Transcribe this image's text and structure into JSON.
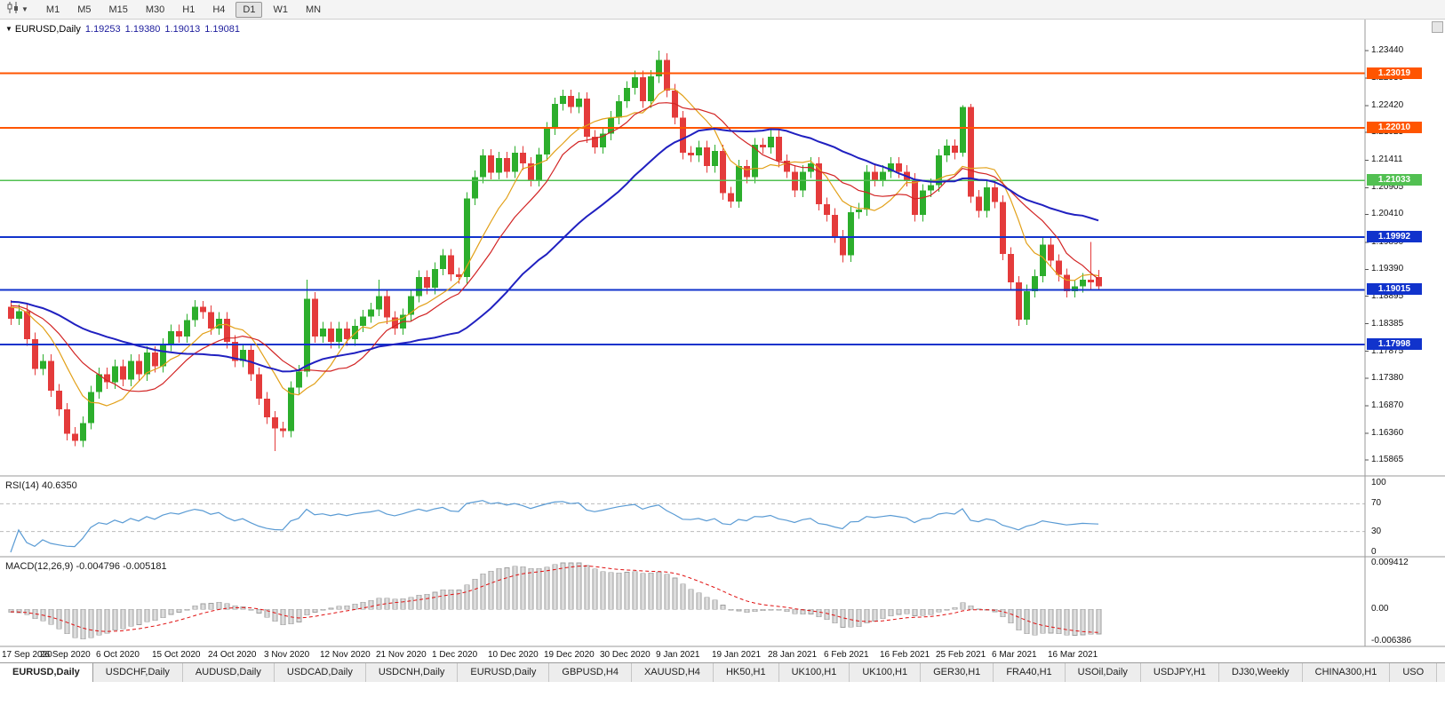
{
  "toolbar": {
    "timeframes": [
      "M1",
      "M5",
      "M15",
      "M30",
      "H1",
      "H4",
      "D1",
      "W1",
      "MN"
    ],
    "active_timeframe": "D1"
  },
  "chart": {
    "title": {
      "symbol": "EURUSD,Daily",
      "open": "1.19253",
      "high": "1.19380",
      "low": "1.19013",
      "close": "1.19081"
    },
    "price_axis": {
      "ticks": [
        "1.23440",
        "1.22930",
        "1.22420",
        "1.21925",
        "1.21411",
        "1.20905",
        "1.20410",
        "1.19890",
        "1.19390",
        "1.18895",
        "1.18385",
        "1.17875",
        "1.17380",
        "1.16870",
        "1.16360",
        "1.15865"
      ]
    },
    "hlines": [
      {
        "price": 1.23019,
        "label": "1.23019",
        "color": "#FF5500",
        "width": 2
      },
      {
        "price": 1.2201,
        "label": "1.22010",
        "color": "#FF5500",
        "width": 2
      },
      {
        "price": 1.21033,
        "label": "1.21033",
        "color": "#52C052",
        "width": 1.5
      },
      {
        "price": 1.19992,
        "label": "1.19992",
        "color": "#1133CC",
        "width": 2
      },
      {
        "price": 1.19015,
        "label": "1.19015",
        "color": "#1133CC",
        "width": 2
      },
      {
        "price": 1.17998,
        "label": "1.17998",
        "color": "#1133CC",
        "width": 2
      }
    ],
    "date_axis": [
      "17 Sep 2020",
      "26 Sep 2020",
      "6 Oct 2020",
      "15 Oct 2020",
      "24 Oct 2020",
      "3 Nov 2020",
      "12 Nov 2020",
      "21 Nov 2020",
      "1 Dec 2020",
      "10 Dec 2020",
      "19 Dec 2020",
      "30 Dec 2020",
      "9 Jan 2021",
      "19 Jan 2021",
      "28 Jan 2021",
      "6 Feb 2021",
      "16 Feb 2021",
      "25 Feb 2021",
      "6 Mar 2021",
      "16 Mar 2021"
    ]
  },
  "rsi": {
    "label": "RSI(14) 40.6350",
    "axis": [
      "100",
      "70",
      "30",
      "0"
    ],
    "levels": [
      70,
      30
    ]
  },
  "macd": {
    "label": "MACD(12,26,9) -0.004796 -0.005181",
    "axis": [
      "0.009412",
      "0.00",
      "-0.006386"
    ],
    "range": [
      -0.006386,
      0.009412
    ]
  },
  "colors": {
    "bull": "#2CAE2C",
    "bear": "#E43B3B",
    "rsi_line": "#5A9BD4",
    "macd_bar": "#dcdcdc",
    "macd_bar_edge": "#9e9e9e",
    "macd_signal": "#E01010"
  },
  "chart_data": {
    "type": "candlestick",
    "symbol": "EURUSD",
    "timeframe": "Daily",
    "ohlc_current": [
      1.19253,
      1.1938,
      1.19013,
      1.19081
    ],
    "price_range": [
      1.15865,
      1.2344
    ],
    "bars_per_label": 7,
    "x_labels": [
      "17 Sep 2020",
      "26 Sep 2020",
      "6 Oct 2020",
      "15 Oct 2020",
      "24 Oct 2020",
      "3 Nov 2020",
      "12 Nov 2020",
      "21 Nov 2020",
      "1 Dec 2020",
      "10 Dec 2020",
      "19 Dec 2020",
      "30 Dec 2020",
      "9 Jan 2021",
      "19 Jan 2021",
      "28 Jan 2021",
      "6 Feb 2021",
      "16 Feb 2021",
      "25 Feb 2021",
      "6 Mar 2021",
      "16 Mar 2021"
    ],
    "horizontal_lines": [
      1.23019,
      1.2201,
      1.21033,
      1.19992,
      1.19015,
      1.17998
    ],
    "moving_averages": [
      {
        "name": "ma-fast",
        "period": 8,
        "color": "#E2A018",
        "width": 1.2
      },
      {
        "name": "ma-mid",
        "period": 13,
        "color": "#D22424",
        "width": 1.2
      },
      {
        "name": "ma-slow",
        "period": 30,
        "color": "#2020C0",
        "width": 2
      }
    ],
    "indicators": [
      {
        "name": "RSI",
        "params": [
          14
        ],
        "current": 40.635
      },
      {
        "name": "MACD",
        "params": [
          12,
          26,
          9
        ],
        "current": [
          -0.004796,
          -0.005181
        ]
      }
    ],
    "candles": [
      [
        1.187,
        1.1882,
        1.1836,
        1.1848
      ],
      [
        1.1848,
        1.1874,
        1.1836,
        1.1862
      ],
      [
        1.1862,
        1.1874,
        1.1798,
        1.181
      ],
      [
        1.181,
        1.1822,
        1.1743,
        1.1755
      ],
      [
        1.1755,
        1.1782,
        1.1743,
        1.177
      ],
      [
        1.177,
        1.1782,
        1.1703,
        1.1715
      ],
      [
        1.1715,
        1.1727,
        1.1668,
        1.168
      ],
      [
        1.168,
        1.1692,
        1.1623,
        1.1635
      ],
      [
        1.1635,
        1.1647,
        1.1612,
        1.1622
      ],
      [
        1.1622,
        1.1667,
        1.161,
        1.1655
      ],
      [
        1.1655,
        1.1724,
        1.1643,
        1.1712
      ],
      [
        1.1712,
        1.1757,
        1.17,
        1.1745
      ],
      [
        1.1745,
        1.1757,
        1.1718,
        1.173
      ],
      [
        1.173,
        1.1772,
        1.1718,
        1.176
      ],
      [
        1.176,
        1.1772,
        1.1723,
        1.1735
      ],
      [
        1.1735,
        1.1782,
        1.1723,
        1.177
      ],
      [
        1.177,
        1.1782,
        1.1733,
        1.1745
      ],
      [
        1.1745,
        1.1797,
        1.1733,
        1.1785
      ],
      [
        1.1785,
        1.1797,
        1.1748,
        1.176
      ],
      [
        1.176,
        1.1812,
        1.1748,
        1.18
      ],
      [
        1.18,
        1.1837,
        1.1788,
        1.1825
      ],
      [
        1.1825,
        1.1837,
        1.1803,
        1.1815
      ],
      [
        1.1815,
        1.1857,
        1.1803,
        1.1845
      ],
      [
        1.1845,
        1.1882,
        1.1833,
        1.187
      ],
      [
        1.187,
        1.1881,
        1.1848,
        1.186
      ],
      [
        1.186,
        1.1872,
        1.1818,
        1.183
      ],
      [
        1.183,
        1.186,
        1.1818,
        1.1848
      ],
      [
        1.1848,
        1.186,
        1.1793,
        1.1805
      ],
      [
        1.1805,
        1.1817,
        1.1758,
        1.177
      ],
      [
        1.177,
        1.1802,
        1.1758,
        1.179
      ],
      [
        1.179,
        1.1802,
        1.1733,
        1.1745
      ],
      [
        1.1745,
        1.1757,
        1.1688,
        1.17
      ],
      [
        1.17,
        1.1712,
        1.1653,
        1.1665
      ],
      [
        1.1665,
        1.1677,
        1.1603,
        1.1645
      ],
      [
        1.1645,
        1.1657,
        1.1628,
        1.164
      ],
      [
        1.164,
        1.1732,
        1.1628,
        1.172
      ],
      [
        1.172,
        1.1762,
        1.1708,
        1.175
      ],
      [
        1.175,
        1.192,
        1.174,
        1.1885
      ],
      [
        1.1885,
        1.1897,
        1.1803,
        1.1815
      ],
      [
        1.1815,
        1.1842,
        1.1803,
        1.183
      ],
      [
        1.183,
        1.1842,
        1.1793,
        1.1805
      ],
      [
        1.1805,
        1.1842,
        1.1793,
        1.183
      ],
      [
        1.183,
        1.1842,
        1.1798,
        1.181
      ],
      [
        1.181,
        1.1847,
        1.1798,
        1.1835
      ],
      [
        1.1835,
        1.1864,
        1.1823,
        1.1852
      ],
      [
        1.1852,
        1.1877,
        1.184,
        1.1865
      ],
      [
        1.1865,
        1.192,
        1.1853,
        1.189
      ],
      [
        1.189,
        1.1902,
        1.1838,
        1.185
      ],
      [
        1.185,
        1.1862,
        1.1818,
        1.183
      ],
      [
        1.183,
        1.1867,
        1.1818,
        1.1855
      ],
      [
        1.1855,
        1.1902,
        1.1843,
        1.189
      ],
      [
        1.189,
        1.1937,
        1.1878,
        1.1925
      ],
      [
        1.1925,
        1.1937,
        1.1893,
        1.1905
      ],
      [
        1.1905,
        1.1952,
        1.1893,
        1.194
      ],
      [
        1.194,
        1.1977,
        1.1928,
        1.1965
      ],
      [
        1.1965,
        1.1977,
        1.1918,
        1.193
      ],
      [
        1.193,
        1.1942,
        1.1913,
        1.1925
      ],
      [
        1.1925,
        1.2082,
        1.1913,
        1.207
      ],
      [
        1.207,
        1.2122,
        1.2058,
        1.211
      ],
      [
        1.211,
        1.2162,
        1.2098,
        1.215
      ],
      [
        1.215,
        1.2162,
        1.2106,
        1.2118
      ],
      [
        1.2118,
        1.2157,
        1.2106,
        1.2145
      ],
      [
        1.2145,
        1.2157,
        1.2108,
        1.212
      ],
      [
        1.212,
        1.2167,
        1.2108,
        1.2155
      ],
      [
        1.2155,
        1.2167,
        1.2123,
        1.2135
      ],
      [
        1.2135,
        1.2147,
        1.2093,
        1.2105
      ],
      [
        1.2105,
        1.2164,
        1.2093,
        1.2152
      ],
      [
        1.2152,
        1.2212,
        1.214,
        1.22
      ],
      [
        1.22,
        1.2257,
        1.2188,
        1.2245
      ],
      [
        1.2245,
        1.2272,
        1.2233,
        1.226
      ],
      [
        1.226,
        1.2272,
        1.2228,
        1.224
      ],
      [
        1.224,
        1.2267,
        1.2228,
        1.2255
      ],
      [
        1.2255,
        1.2267,
        1.2173,
        1.2185
      ],
      [
        1.2185,
        1.2197,
        1.2153,
        1.2165
      ],
      [
        1.2165,
        1.2202,
        1.2153,
        1.219
      ],
      [
        1.219,
        1.2232,
        1.2178,
        1.222
      ],
      [
        1.222,
        1.2262,
        1.2208,
        1.225
      ],
      [
        1.225,
        1.2287,
        1.2238,
        1.2275
      ],
      [
        1.2275,
        1.2307,
        1.2263,
        1.2295
      ],
      [
        1.2295,
        1.2307,
        1.2238,
        1.225
      ],
      [
        1.225,
        1.2308,
        1.2238,
        1.2296
      ],
      [
        1.2296,
        1.2344,
        1.2284,
        1.2327
      ],
      [
        1.2327,
        1.2339,
        1.2258,
        1.227
      ],
      [
        1.227,
        1.2282,
        1.2208,
        1.222
      ],
      [
        1.222,
        1.2232,
        1.2143,
        1.2155
      ],
      [
        1.2155,
        1.2167,
        1.2138,
        1.215
      ],
      [
        1.215,
        1.2177,
        1.2138,
        1.2165
      ],
      [
        1.2165,
        1.2177,
        1.2118,
        1.213
      ],
      [
        1.213,
        1.217,
        1.2118,
        1.2158
      ],
      [
        1.2158,
        1.217,
        1.2068,
        1.208
      ],
      [
        1.208,
        1.2092,
        1.2053,
        1.2065
      ],
      [
        1.2065,
        1.2142,
        1.2053,
        1.213
      ],
      [
        1.213,
        1.2142,
        1.2098,
        1.211
      ],
      [
        1.211,
        1.2182,
        1.2098,
        1.217
      ],
      [
        1.217,
        1.2182,
        1.2153,
        1.2165
      ],
      [
        1.2165,
        1.2197,
        1.2153,
        1.2185
      ],
      [
        1.2185,
        1.2197,
        1.2128,
        1.214
      ],
      [
        1.214,
        1.2152,
        1.2108,
        1.212
      ],
      [
        1.212,
        1.2132,
        1.2073,
        1.2085
      ],
      [
        1.2085,
        1.2132,
        1.2073,
        1.212
      ],
      [
        1.212,
        1.2147,
        1.2108,
        1.2135
      ],
      [
        1.2135,
        1.2147,
        1.2048,
        1.206
      ],
      [
        1.206,
        1.2072,
        1.2028,
        1.204
      ],
      [
        1.204,
        1.2052,
        1.1988,
        1.2
      ],
      [
        1.2,
        1.2012,
        1.1952,
        1.1965
      ],
      [
        1.1965,
        1.2057,
        1.1953,
        1.2045
      ],
      [
        1.2045,
        1.2062,
        1.2033,
        1.205
      ],
      [
        1.205,
        1.2132,
        1.2038,
        1.212
      ],
      [
        1.212,
        1.2132,
        1.2093,
        1.2105
      ],
      [
        1.2105,
        1.2132,
        1.2093,
        1.212
      ],
      [
        1.212,
        1.2147,
        1.2108,
        1.2135
      ],
      [
        1.2135,
        1.2147,
        1.2108,
        1.212
      ],
      [
        1.212,
        1.2132,
        1.2093,
        1.2105
      ],
      [
        1.2105,
        1.2117,
        1.2028,
        1.204
      ],
      [
        1.204,
        1.2097,
        1.2028,
        1.2085
      ],
      [
        1.2085,
        1.2107,
        1.2073,
        1.2095
      ],
      [
        1.2095,
        1.2162,
        1.2083,
        1.215
      ],
      [
        1.215,
        1.218,
        1.2138,
        1.2168
      ],
      [
        1.2168,
        1.218,
        1.2143,
        1.2155
      ],
      [
        1.2155,
        1.2243,
        1.2148,
        1.224
      ],
      [
        1.224,
        1.2245,
        1.2062,
        1.2074
      ],
      [
        1.2074,
        1.2086,
        1.2035,
        1.2047
      ],
      [
        1.2047,
        1.2103,
        1.2035,
        1.2091
      ],
      [
        1.2091,
        1.2103,
        1.2052,
        1.2064
      ],
      [
        1.2064,
        1.2076,
        1.1956,
        1.1968
      ],
      [
        1.1968,
        1.198,
        1.1903,
        1.1915
      ],
      [
        1.1915,
        1.1927,
        1.1835,
        1.1846
      ],
      [
        1.1846,
        1.1911,
        1.1836,
        1.1899
      ],
      [
        1.1899,
        1.1939,
        1.1887,
        1.1927
      ],
      [
        1.1927,
        1.1997,
        1.1915,
        1.1985
      ],
      [
        1.1985,
        1.1997,
        1.1943,
        1.1955
      ],
      [
        1.1955,
        1.1967,
        1.1917,
        1.1929
      ],
      [
        1.1929,
        1.1941,
        1.1887,
        1.1899
      ],
      [
        1.1899,
        1.192,
        1.1887,
        1.1908
      ],
      [
        1.1908,
        1.1932,
        1.1896,
        1.192
      ],
      [
        1.192,
        1.199,
        1.1903,
        1.1915
      ],
      [
        1.19253,
        1.1938,
        1.19013,
        1.19081
      ]
    ]
  },
  "tabs": {
    "items": [
      "EURUSD,Daily",
      "USDCHF,Daily",
      "AUDUSD,Daily",
      "USDCAD,Daily",
      "USDCNH,Daily",
      "EURUSD,Daily",
      "GBPUSD,H4",
      "XAUUSD,H4",
      "HK50,H1",
      "UK100,H1",
      "UK100,H1",
      "GER30,H1",
      "FRA40,H1",
      "USOil,Daily",
      "USDJPY,H1",
      "DJ30,Weekly",
      "CHINA300,H1",
      "USO"
    ],
    "active_index": 0
  }
}
